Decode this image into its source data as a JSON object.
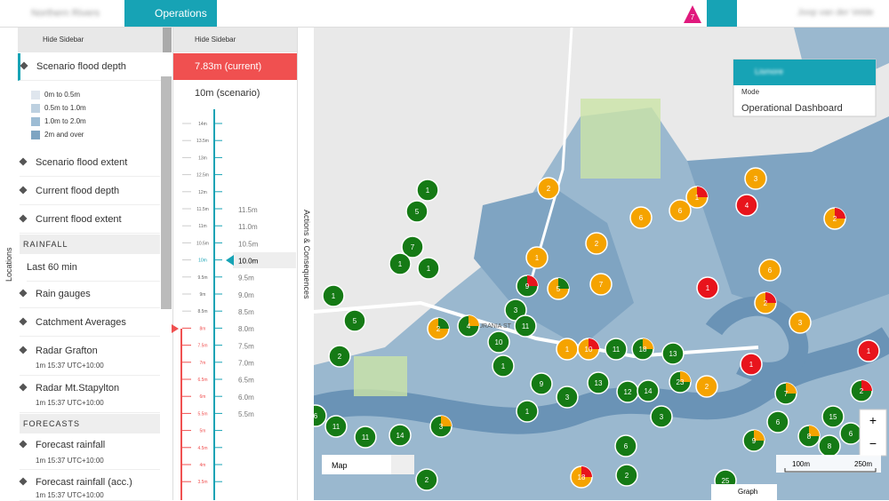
{
  "header": {
    "app": "Northern Rivers",
    "menu": "Operations",
    "alerts": "7",
    "user": "Joop van der Velde"
  },
  "sidebar": {
    "hide": "Hide Sidebar",
    "tab": "Locations",
    "scenario_depth": "Scenario flood depth",
    "legend": [
      "0m to 0.5m",
      "0.5m to 1.0m",
      "1.0m to 2.0m",
      "2m and over"
    ],
    "scenario_extent": "Scenario flood extent",
    "current_depth": "Current flood depth",
    "current_extent": "Current flood extent",
    "rainfall": "RAINFALL",
    "period": "Last 60 min",
    "gauges": "Rain gauges",
    "catchment": "Catchment Averages",
    "radar1": "Radar Grafton",
    "radar_meta": "1m  15:37  UTC+10:00",
    "radar2": "Radar Mt.Stapylton",
    "forecasts": "FORECASTS",
    "forecast1": "Forecast rainfall",
    "forecast2": "Forecast rainfall (acc.)"
  },
  "levels": {
    "hide": "Hide Sidebar",
    "current": "7.83m (current)",
    "scenario": "10m (scenario)",
    "tab": "Actions & Consequences",
    "scale": [
      "14m",
      "13.5m",
      "13m",
      "12.5m",
      "12m",
      "11.5m",
      "11m",
      "10.5m",
      "10m",
      "9.5m",
      "9m",
      "8.5m",
      "8m",
      "7.5m",
      "7m",
      "6.5m",
      "6m",
      "5.5m",
      "5m",
      "4.5m",
      "4m",
      "3.5m"
    ],
    "options": [
      "11.5m",
      "11.0m",
      "10.5m",
      "10.0m",
      "9.5m",
      "9.0m",
      "8.5m",
      "8.0m",
      "7.5m",
      "7.0m",
      "6.5m",
      "6.0m",
      "5.5m"
    ]
  },
  "map": {
    "street": "URANIA ST",
    "layer": "Map",
    "scale": [
      "100m",
      "250m"
    ],
    "graph": "Graph",
    "zoom_in": "+",
    "zoom_out": "−",
    "card": {
      "title": "Lismore",
      "mode_label": "Mode",
      "mode": "Operational Dashboard"
    },
    "markers": [
      "1",
      "5",
      "2",
      "7",
      "1",
      "1",
      "1",
      "5",
      "2",
      "2",
      "4",
      "3",
      "9",
      "5",
      "11",
      "10",
      "1",
      "1",
      "2",
      "7",
      "6",
      "6",
      "1",
      "3",
      "4",
      "2",
      "6",
      "1",
      "2",
      "3",
      "1",
      "1",
      "1",
      "10",
      "11",
      "18",
      "13",
      "23",
      "2",
      "9",
      "3",
      "13",
      "12",
      "14",
      "3",
      "1",
      "7",
      "2",
      "6",
      "15",
      "8",
      "8",
      "6",
      "9",
      "11",
      "11",
      "14",
      "3",
      "6",
      "2",
      "18",
      "25",
      "2",
      "6"
    ]
  }
}
